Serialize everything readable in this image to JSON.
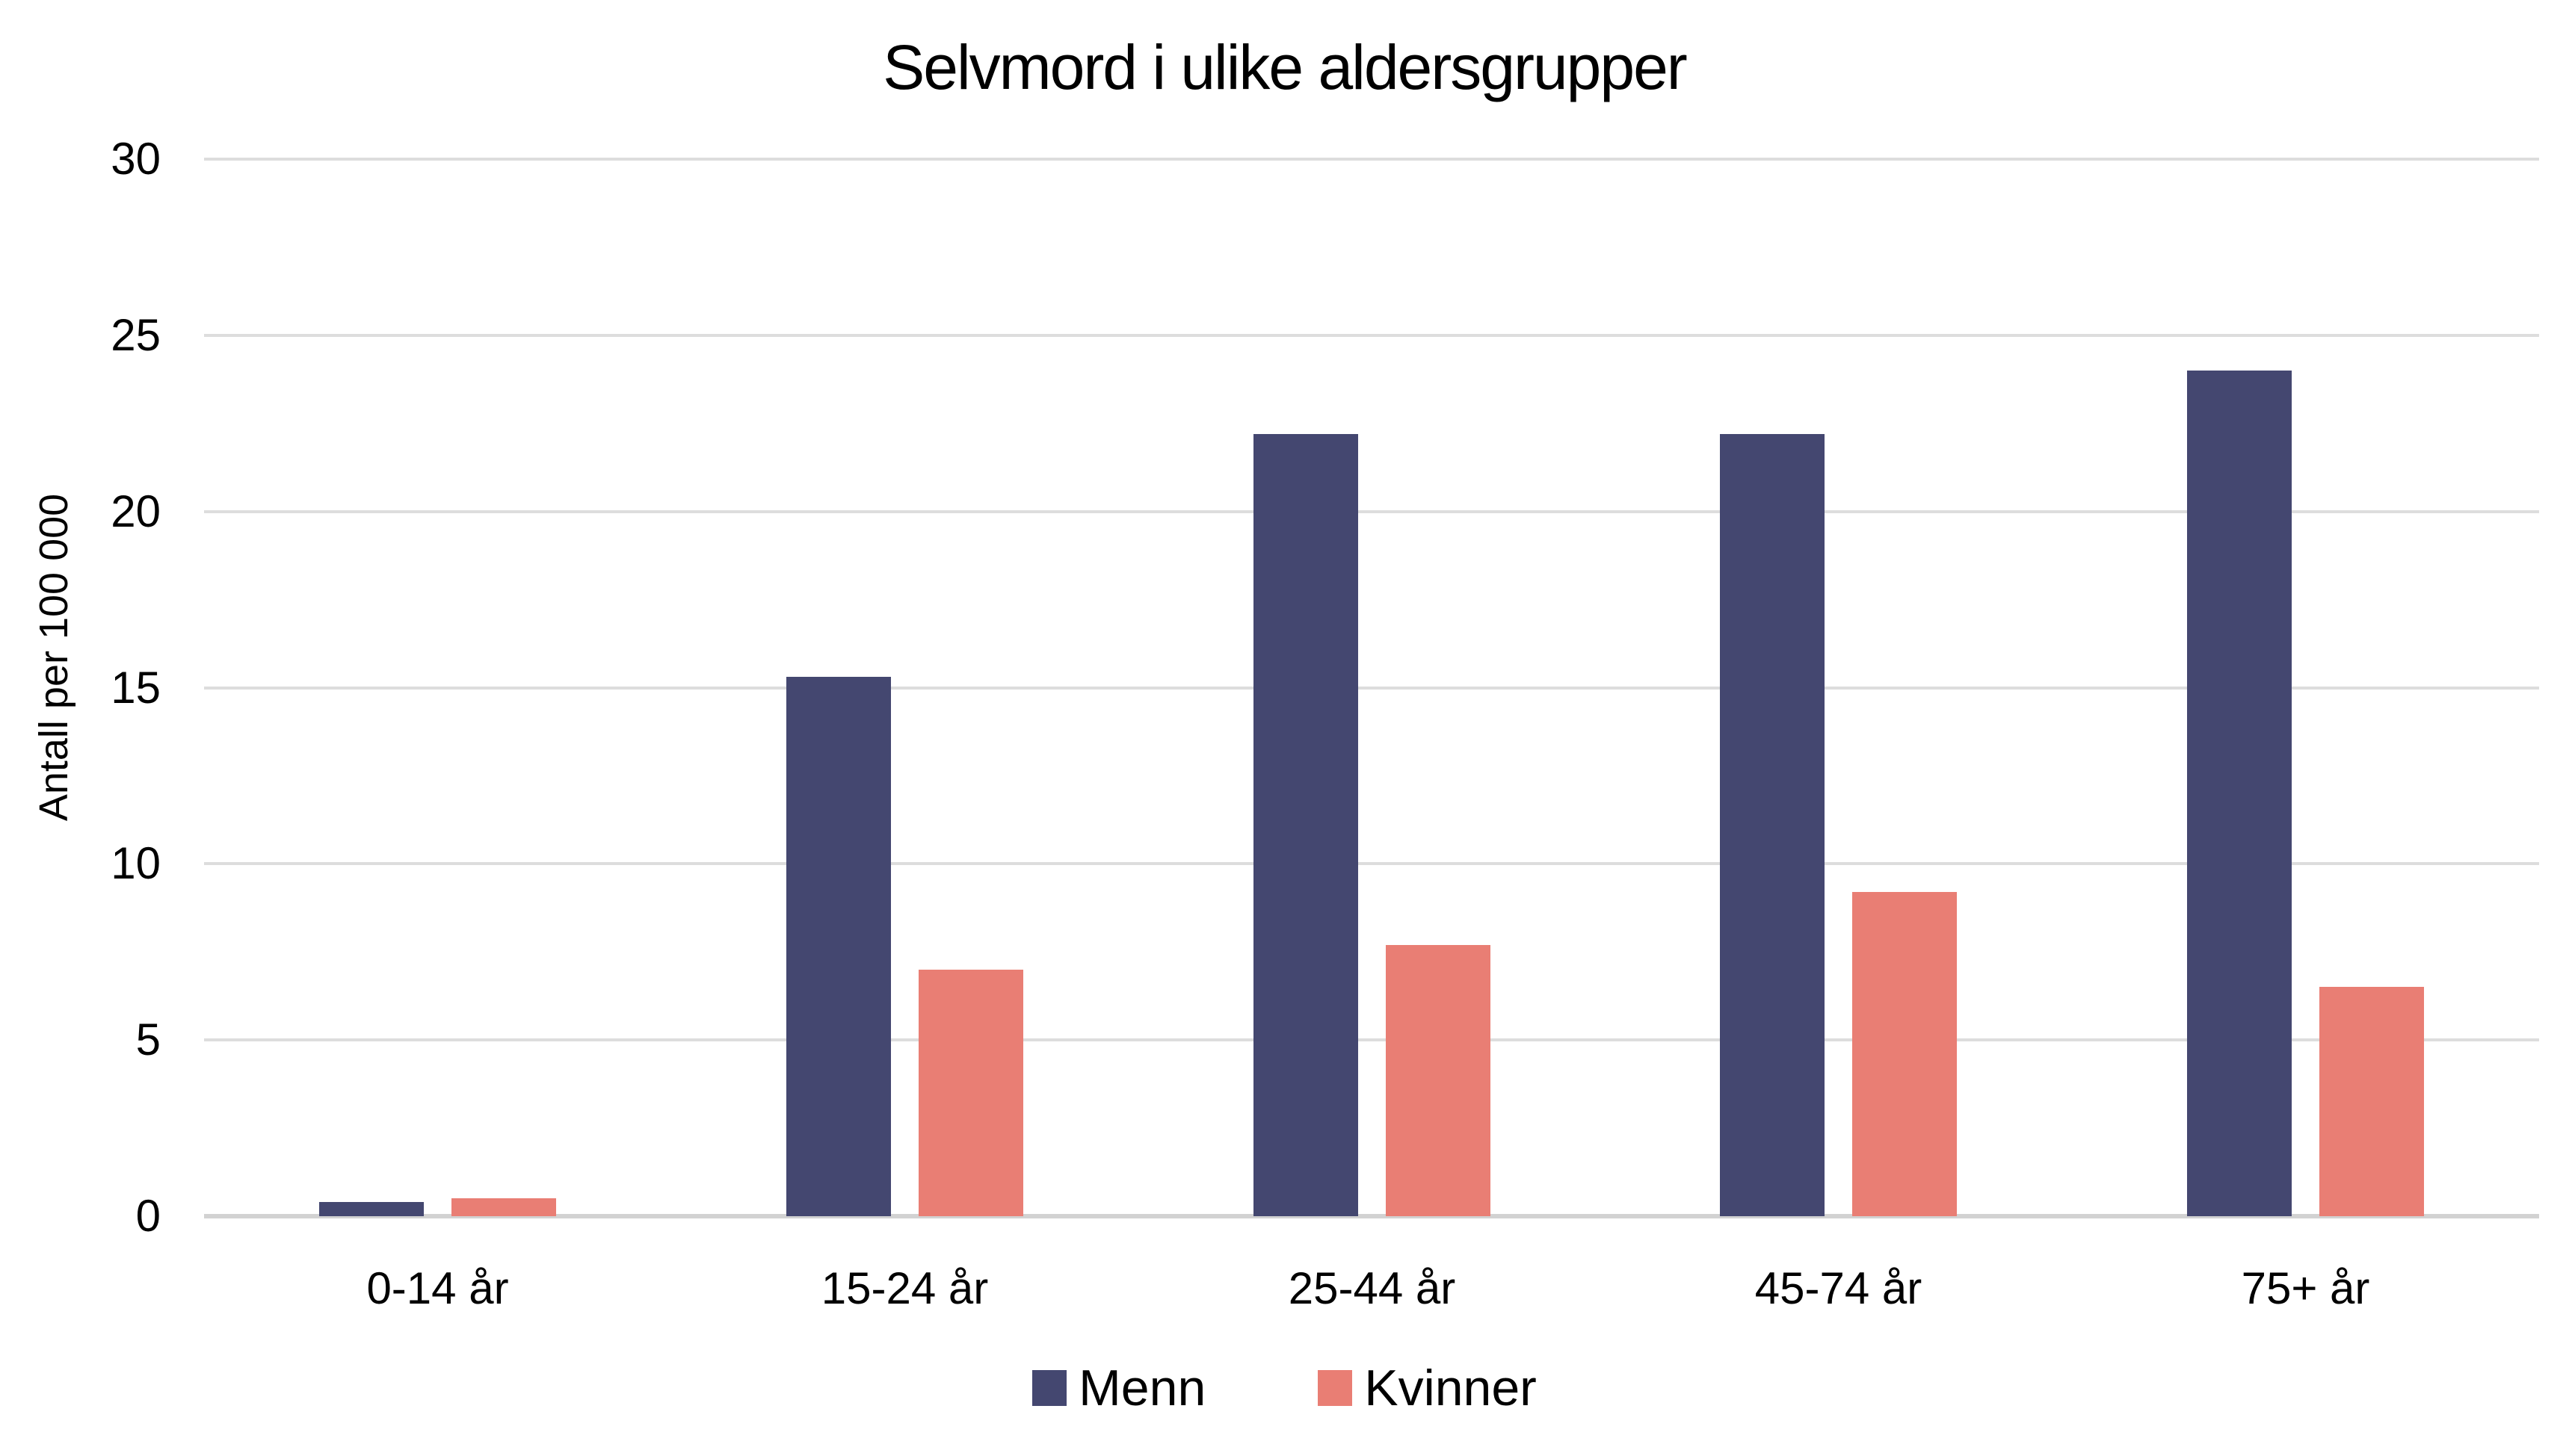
{
  "title": "Selvmord i ulike aldersgrupper",
  "chart_data": {
    "type": "bar",
    "title": "Selvmord i ulike aldersgrupper",
    "categories": [
      "0-14 år",
      "15-24 år",
      "25-44 år",
      "45-74 år",
      "75+ år"
    ],
    "series": [
      {
        "name": "Menn",
        "color": "#444770",
        "values": [
          0.4,
          15.3,
          22.2,
          22.2,
          24.0
        ]
      },
      {
        "name": "Kvinner",
        "color": "#E97E74",
        "values": [
          0.5,
          7.0,
          7.7,
          9.2,
          6.5
        ]
      }
    ],
    "xlabel": "",
    "ylabel": "Antall  per 100 000",
    "ylim": [
      0,
      30
    ],
    "yticks": [
      0,
      5,
      10,
      15,
      20,
      25,
      30
    ],
    "grid": true,
    "legend_position": "bottom",
    "colors": {
      "background": "#FFFFFF",
      "text": "#000000",
      "gridline": "#DDDDDD",
      "baseline": "#D2D2D2"
    }
  }
}
